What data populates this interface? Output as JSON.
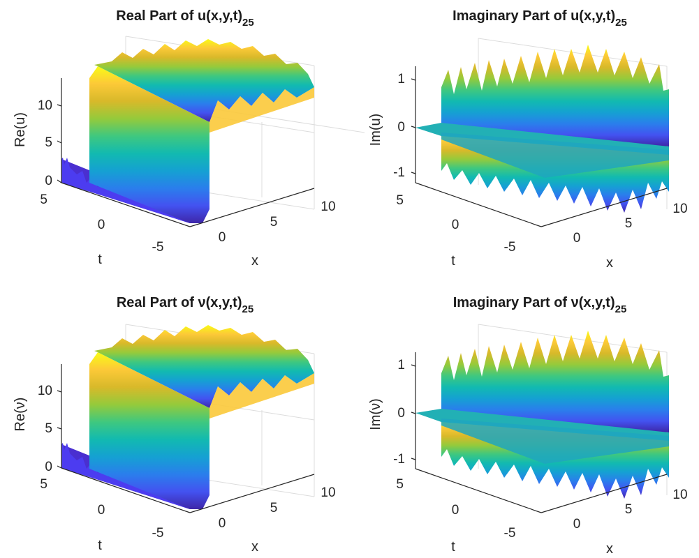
{
  "colormap": [
    "#3e26a8",
    "#4352f0",
    "#2a7eec",
    "#15a1d2",
    "#12bab0",
    "#3fc87f",
    "#95ca3b",
    "#d8b92a",
    "#fcc938",
    "#f9fb15"
  ],
  "chart_data": [
    {
      "type": "surface",
      "title": "Real Part of u(x,y,t)",
      "title_sub": "25",
      "xlabel": "x",
      "ylabel": "t",
      "zlabel": "Re(u)",
      "xlim": [
        -5,
        10
      ],
      "ylim": [
        -5,
        5
      ],
      "zlim": [
        0,
        13
      ],
      "xticks": [
        "0",
        "5",
        "10"
      ],
      "yticks": [
        "5",
        "0",
        "-5"
      ],
      "zticks": [
        "0",
        "5",
        "10"
      ],
      "grid": true,
      "description_values": {
        "low_plateau": 0.5,
        "high_plateau": 12.5,
        "ripple_amplitude": 0.8
      }
    },
    {
      "type": "surface",
      "title": "Imaginary Part of u(x,y,t)",
      "title_sub": "25",
      "xlabel": "x",
      "ylabel": "t",
      "zlabel": "Im(u)",
      "xlim": [
        -5,
        10
      ],
      "ylim": [
        -5,
        5
      ],
      "zlim": [
        -1.2,
        1.2
      ],
      "xticks": [
        "0",
        "5",
        "10"
      ],
      "yticks": [
        "5",
        "0",
        "-5"
      ],
      "zticks": [
        "-1",
        "0",
        "1"
      ],
      "grid": true,
      "description_values": {
        "amplitude": 1.1
      }
    },
    {
      "type": "surface",
      "title": "Real Part of ν(x,y,t)",
      "title_sub": "25",
      "xlabel": "x",
      "ylabel": "t",
      "zlabel": "Re(ν)",
      "xlim": [
        -5,
        10
      ],
      "ylim": [
        -5,
        5
      ],
      "zlim": [
        0,
        13
      ],
      "xticks": [
        "0",
        "5",
        "10"
      ],
      "yticks": [
        "5",
        "0",
        "-5"
      ],
      "zticks": [
        "0",
        "5",
        "10"
      ],
      "grid": true,
      "description_values": {
        "low_plateau": 0.5,
        "high_plateau": 12.5,
        "ripple_amplitude": 0.8
      }
    },
    {
      "type": "surface",
      "title": "Imaginary Part of ν(x,y,t)",
      "title_sub": "25",
      "xlabel": "x",
      "ylabel": "t",
      "zlabel": "Im(ν)",
      "xlim": [
        -5,
        10
      ],
      "ylim": [
        -5,
        5
      ],
      "zlim": [
        -1.2,
        1.2
      ],
      "xticks": [
        "0",
        "5",
        "10"
      ],
      "yticks": [
        "5",
        "0",
        "-5"
      ],
      "zticks": [
        "-1",
        "0",
        "1"
      ],
      "grid": true,
      "description_values": {
        "amplitude": 1.1
      }
    }
  ]
}
